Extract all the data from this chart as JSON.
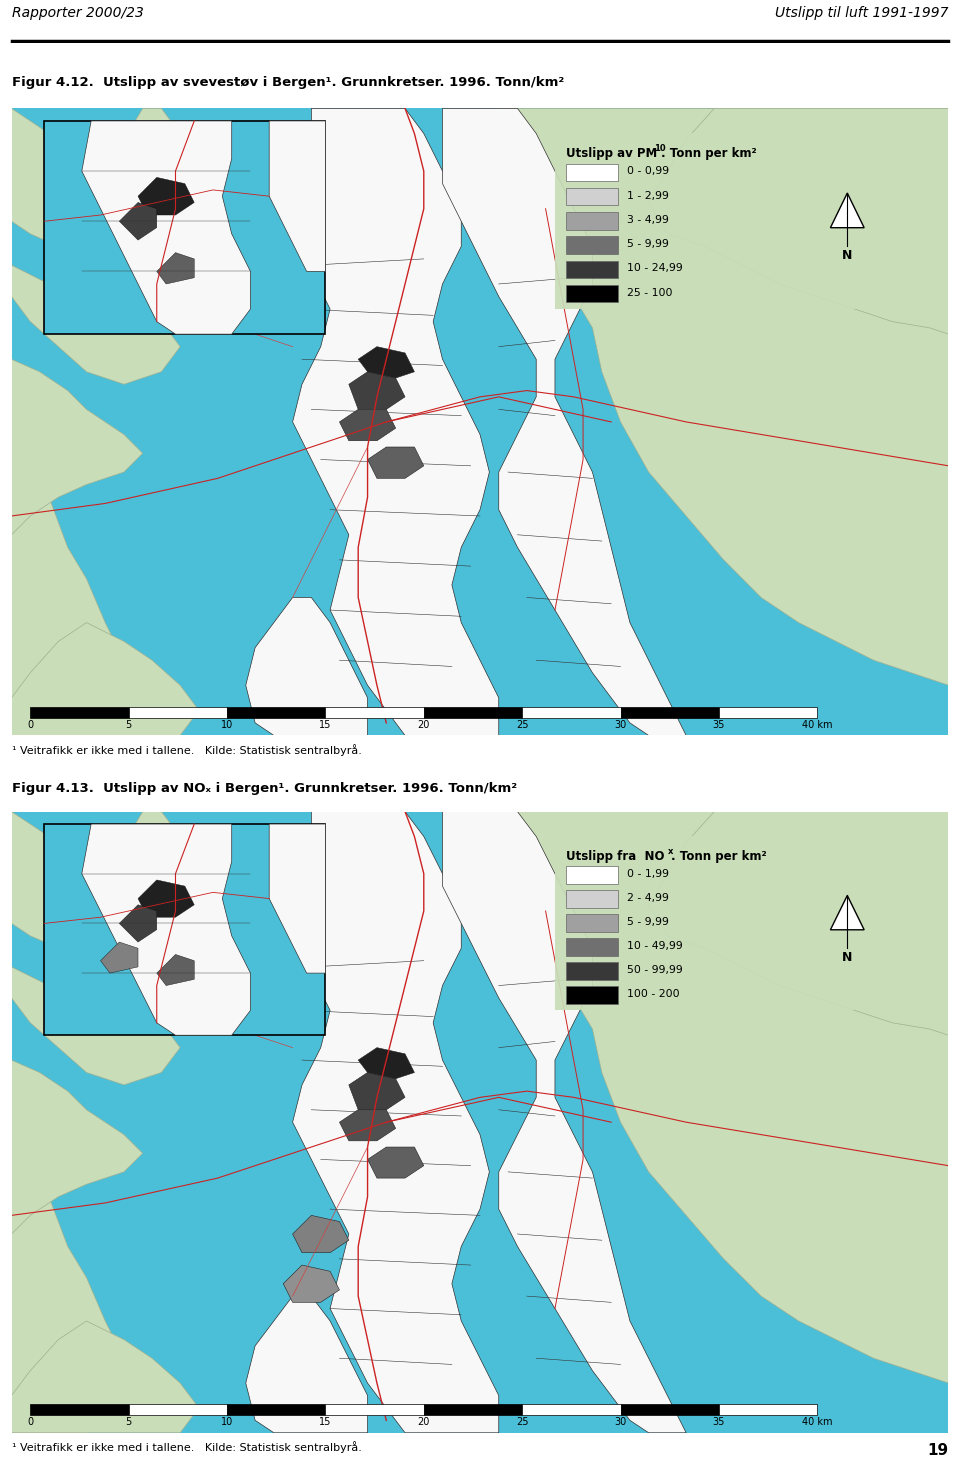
{
  "header_left": "Rapporter 2000/23",
  "header_right": "Utslipp til luft 1991-1997",
  "page_number": "19",
  "fig1_title": "Figur 4.12.  Utslipp av svevestøv i Bergen¹. Grunnkretser. 1996. Tonn/km²",
  "fig2_title": "Figur 4.13.  Utslipp av NOₓ i Bergen¹. Grunnkretser. 1996. Tonn/km²",
  "footnote": "¹ Veitrafikk er ikke med i tallene.   Kilde: Statistisk sentralbyrå.",
  "legend1_title": "Utslipp av PM",
  "legend1_sub": "10",
  "legend1_rest": ". Tonn per km²",
  "legend1_items": [
    {
      "label": "0 - 0,99",
      "color": "#ffffff"
    },
    {
      "label": "1 - 2,99",
      "color": "#d0d0d0"
    },
    {
      "label": "3 - 4,99",
      "color": "#a0a0a0"
    },
    {
      "label": "5 - 9,99",
      "color": "#707070"
    },
    {
      "label": "10 - 24,99",
      "color": "#383838"
    },
    {
      "label": "25 - 100",
      "color": "#000000"
    }
  ],
  "legend2_title": "Utslipp fra  NO",
  "legend2_sub": "x",
  "legend2_rest": ". Tonn per km²",
  "legend2_items": [
    {
      "label": "0 - 1,99",
      "color": "#ffffff"
    },
    {
      "label": "2 - 4,99",
      "color": "#d0d0d0"
    },
    {
      "label": "5 - 9,99",
      "color": "#a0a0a0"
    },
    {
      "label": "10 - 49,99",
      "color": "#707070"
    },
    {
      "label": "50 - 99,99",
      "color": "#383838"
    },
    {
      "label": "100 - 200",
      "color": "#000000"
    }
  ],
  "water_color": "#4bbfd8",
  "land_color": "#c8ddb8",
  "urban_color": "#f8f8f8",
  "scalebar_ticks": [
    "0",
    "5",
    "10",
    "15",
    "20",
    "25",
    "30",
    "35",
    "40 km"
  ]
}
